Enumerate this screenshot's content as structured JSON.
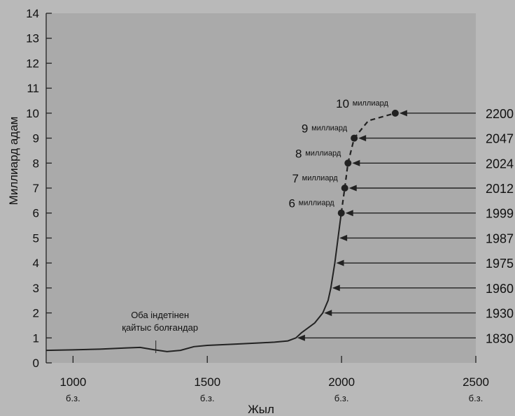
{
  "chart_data": {
    "type": "line",
    "xlabel": "Жыл",
    "ylabel": "Миллиард адам",
    "xlim": [
      900,
      2500
    ],
    "ylim": [
      0,
      14
    ],
    "x_ticks": [
      1000,
      1500,
      2000,
      2500
    ],
    "x_tick_sub": "б.з.",
    "y_ticks": [
      0,
      1,
      2,
      3,
      4,
      5,
      6,
      7,
      8,
      9,
      10,
      11,
      12,
      13,
      14
    ],
    "grid": false,
    "series_actual": {
      "x": [
        900,
        1000,
        1100,
        1200,
        1250,
        1300,
        1350,
        1400,
        1450,
        1500,
        1600,
        1700,
        1750,
        1800,
        1830,
        1850,
        1900,
        1930,
        1950,
        1960,
        1975,
        1987,
        1999
      ],
      "y": [
        0.5,
        0.52,
        0.55,
        0.6,
        0.62,
        0.53,
        0.45,
        0.5,
        0.65,
        0.7,
        0.75,
        0.8,
        0.83,
        0.88,
        1,
        1.2,
        1.6,
        2,
        2.5,
        3,
        4,
        5,
        6
      ]
    },
    "series_projected": {
      "x": [
        1999,
        2012,
        2024,
        2047,
        2100,
        2200
      ],
      "y": [
        6,
        7,
        8,
        9,
        9.7,
        10
      ]
    },
    "milestones": [
      {
        "year": "1830",
        "y": 1,
        "x": 1830
      },
      {
        "year": "1930",
        "y": 2,
        "x": 1930
      },
      {
        "year": "1960",
        "y": 3,
        "x": 1960
      },
      {
        "year": "1975",
        "y": 4,
        "x": 1975
      },
      {
        "year": "1987",
        "y": 5,
        "x": 1987
      },
      {
        "year": "1999",
        "y": 6,
        "x": 1999
      },
      {
        "year": "2012",
        "y": 7,
        "x": 2012
      },
      {
        "year": "2024",
        "y": 8,
        "x": 2024
      },
      {
        "year": "2047",
        "y": 9,
        "x": 2047
      },
      {
        "year": "2200",
        "y": 10,
        "x": 2200
      }
    ],
    "dot_labels": [
      {
        "num": "6",
        "word": "миллиард",
        "x": 1999,
        "y": 6
      },
      {
        "num": "7",
        "word": "миллиард",
        "x": 2012,
        "y": 7
      },
      {
        "num": "8",
        "word": "миллиард",
        "x": 2024,
        "y": 8
      },
      {
        "num": "9",
        "word": "миллиард",
        "x": 2047,
        "y": 9
      },
      {
        "num": "10",
        "word": "миллиард",
        "x": 2200,
        "y": 10
      }
    ],
    "annotation": {
      "line1": "Оба індетінен",
      "line2": "қайтыс болғандар",
      "x": 1350
    }
  }
}
